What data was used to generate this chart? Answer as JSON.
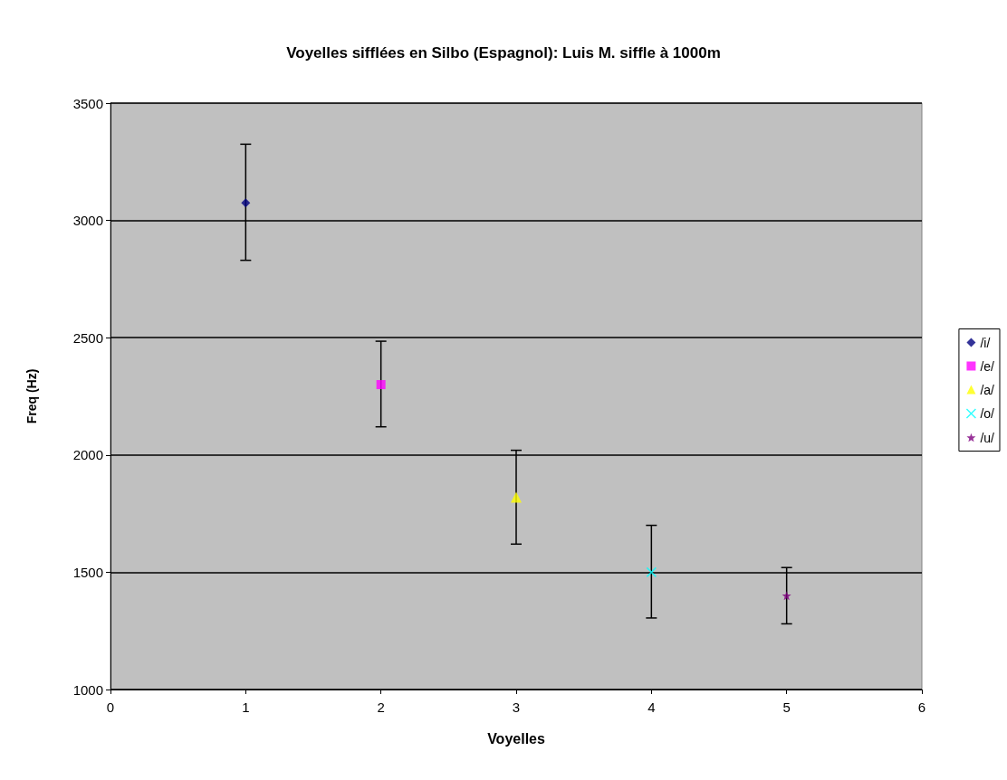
{
  "chart_data": {
    "type": "scatter",
    "title": "Voyelles sifflées en Silbo (Espagnol): Luis M. siffle à 1000m",
    "xlabel": "Voyelles",
    "ylabel": "Freq (Hz)",
    "xlim": [
      0,
      6
    ],
    "xticks": [
      0,
      1,
      2,
      3,
      4,
      5,
      6
    ],
    "ylim": [
      1000,
      3500
    ],
    "yticks": [
      1000,
      1500,
      2000,
      2500,
      3000,
      3500
    ],
    "grid": "y",
    "legend": "right",
    "series": [
      {
        "name": "/i/",
        "color": "#000080",
        "marker": "diamond",
        "x": [
          1
        ],
        "values": [
          3075
        ],
        "errors": [
          [
            2830,
            3325
          ]
        ]
      },
      {
        "name": "/e/",
        "color": "#ff00ff",
        "marker": "square",
        "x": [
          2
        ],
        "values": [
          2300
        ],
        "errors": [
          [
            2120,
            2485
          ]
        ]
      },
      {
        "name": "/a/",
        "color": "#ffff00",
        "marker": "triangle",
        "x": [
          3
        ],
        "values": [
          1820
        ],
        "errors": [
          [
            1620,
            2020
          ]
        ]
      },
      {
        "name": "/o/",
        "color": "#00ffff",
        "marker": "cross",
        "x": [
          4
        ],
        "values": [
          1500
        ],
        "errors": [
          [
            1305,
            1700
          ]
        ]
      },
      {
        "name": "/u/",
        "color": "#800080",
        "marker": "star",
        "x": [
          5
        ],
        "values": [
          1400
        ],
        "errors": [
          [
            1280,
            1520
          ]
        ]
      }
    ]
  }
}
